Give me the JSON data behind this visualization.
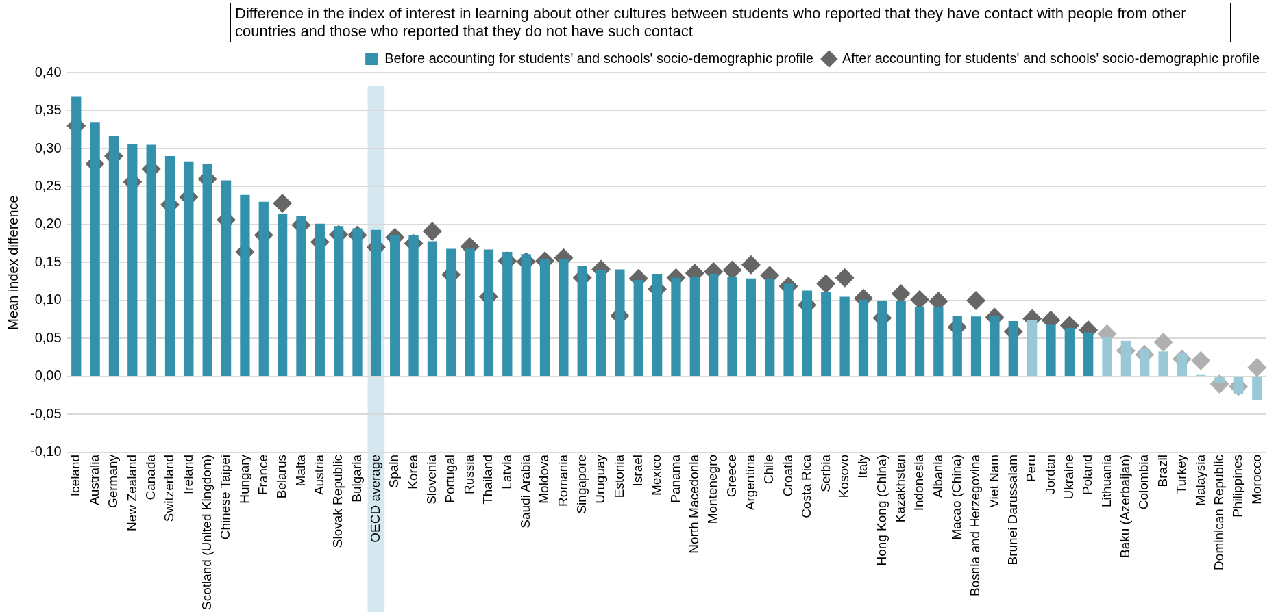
{
  "chart_data": {
    "type": "bar",
    "title": "Difference in the index of interest in learning about other cultures between students who reported that they have contact with people from other countries and those who reported that they do not have such contact",
    "ylabel": "Mean index difference",
    "categories": [
      "Iceland",
      "Australia",
      "Germany",
      "New Zealand",
      "Canada",
      "Switzerland",
      "Ireland",
      "Scotland (United Kingdom)",
      "Chinese Taipei",
      "Hungary",
      "France",
      "Belarus",
      "Malta",
      "Austria",
      "Slovak Republic",
      "Bulgaria",
      "OECD average",
      "Spain",
      "Korea",
      "Slovenia",
      "Portugal",
      "Russia",
      "Thailand",
      "Latvia",
      "Saudi Arabia",
      "Moldova",
      "Romania",
      "Singapore",
      "Uruguay",
      "Estonia",
      "Israel",
      "Mexico",
      "Panama",
      "North Macedonia",
      "Montenegro",
      "Greece",
      "Argentina",
      "Chile",
      "Croatia",
      "Costa Rica",
      "Serbia",
      "Kosovo",
      "Italy",
      "Hong Kong (China)",
      "Kazakhstan",
      "Indonesia",
      "Albania",
      "Macao (China)",
      "Bosnia and Herzegovina",
      "Viet Nam",
      "Brunei Darussalam",
      "Peru",
      "Jordan",
      "Ukraine",
      "Poland",
      "Lithuania",
      "Baku (Azerbaijan)",
      "Colombia",
      "Brazil",
      "Turkey",
      "Malaysia",
      "Dominican Republic",
      "Philippines",
      "Morocco"
    ],
    "series": [
      {
        "name": "Before accounting for students' and schools' socio-demographic profile",
        "color": "#3391ab",
        "colors": [
          "#3391ab",
          "#3391ab",
          "#3391ab",
          "#3391ab",
          "#3391ab",
          "#3391ab",
          "#3391ab",
          "#3391ab",
          "#3391ab",
          "#3391ab",
          "#3391ab",
          "#3391ab",
          "#3391ab",
          "#3391ab",
          "#3391ab",
          "#3391ab",
          "#3391ab",
          "#3391ab",
          "#3391ab",
          "#3391ab",
          "#3391ab",
          "#3391ab",
          "#3391ab",
          "#3391ab",
          "#3391ab",
          "#3391ab",
          "#3391ab",
          "#3391ab",
          "#3391ab",
          "#3391ab",
          "#3391ab",
          "#3391ab",
          "#3391ab",
          "#3391ab",
          "#3391ab",
          "#3391ab",
          "#3391ab",
          "#3391ab",
          "#3391ab",
          "#3391ab",
          "#3391ab",
          "#3391ab",
          "#3391ab",
          "#3391ab",
          "#3391ab",
          "#3391ab",
          "#3391ab",
          "#3391ab",
          "#3391ab",
          "#3391ab",
          "#3391ab",
          "#99c9d6",
          "#3391ab",
          "#3391ab",
          "#3391ab",
          "#99c9d6",
          "#99c9d6",
          "#99c9d6",
          "#99c9d6",
          "#99c9d6",
          "#99c9d6",
          "#99c9d6",
          "#99c9d6",
          "#99c9d6"
        ],
        "values": [
          0.369,
          0.335,
          0.317,
          0.306,
          0.305,
          0.29,
          0.283,
          0.28,
          0.258,
          0.239,
          0.23,
          0.214,
          0.211,
          0.201,
          0.198,
          0.195,
          0.193,
          0.186,
          0.186,
          0.178,
          0.168,
          0.168,
          0.167,
          0.164,
          0.161,
          0.155,
          0.155,
          0.145,
          0.14,
          0.141,
          0.127,
          0.135,
          0.13,
          0.131,
          0.135,
          0.131,
          0.129,
          0.129,
          0.122,
          0.113,
          0.111,
          0.105,
          0.101,
          0.099,
          0.1,
          0.092,
          0.092,
          0.08,
          0.079,
          0.08,
          0.073,
          0.074,
          0.068,
          0.064,
          0.058,
          0.052,
          0.047,
          0.036,
          0.033,
          0.031,
          0.002,
          -0.008,
          -0.023,
          -0.031
        ]
      },
      {
        "name": "After accounting for students' and schools' socio-demographic profile",
        "type": "scatter",
        "color": "#666666",
        "colors": [
          "#666666",
          "#666666",
          "#666666",
          "#666666",
          "#666666",
          "#666666",
          "#666666",
          "#666666",
          "#666666",
          "#666666",
          "#666666",
          "#666666",
          "#666666",
          "#666666",
          "#666666",
          "#666666",
          "#666666",
          "#666666",
          "#666666",
          "#666666",
          "#666666",
          "#666666",
          "#666666",
          "#666666",
          "#666666",
          "#666666",
          "#666666",
          "#666666",
          "#666666",
          "#666666",
          "#666666",
          "#666666",
          "#666666",
          "#666666",
          "#666666",
          "#666666",
          "#666666",
          "#666666",
          "#666666",
          "#666666",
          "#666666",
          "#666666",
          "#666666",
          "#666666",
          "#666666",
          "#666666",
          "#666666",
          "#666666",
          "#666666",
          "#666666",
          "#666666",
          "#666666",
          "#666666",
          "#666666",
          "#666666",
          "#b0b0b0",
          "#b0b0b0",
          "#b0b0b0",
          "#b0b0b0",
          "#b0b0b0",
          "#b0b0b0",
          "#b0b0b0",
          "#b0b0b0",
          "#b0b0b0"
        ],
        "x": [
          "Iceland",
          "Australia",
          "Germany",
          "New Zealand",
          "Canada",
          "Switzerland",
          "Ireland",
          "Scotland (United Kingdom)",
          "Chinese Taipei",
          "Hungary",
          "France",
          "Belarus",
          "Malta",
          "Austria",
          "Slovak Republic",
          "Bulgaria",
          "OECD average",
          "Spain",
          "Korea",
          "Slovenia",
          "Portugal",
          "Russia",
          "Thailand",
          "Latvia",
          "Saudi Arabia",
          "Moldova",
          "Romania",
          "Singapore",
          "Uruguay",
          "Estonia",
          "Israel",
          "Mexico",
          "Panama",
          "North Macedonia",
          "Montenegro",
          "Greece",
          "Argentina",
          "Chile",
          "Croatia",
          "Costa Rica",
          "Serbia",
          "Kosovo",
          "Italy",
          "Hong Kong (China)",
          "Kazakhstan",
          "Indonesia",
          "Albania",
          "Macao (China)",
          "Bosnia and Herzegovina",
          "Viet Nam",
          "Brunei Darussalam",
          "Peru",
          "Jordan",
          "Ukraine",
          "Poland",
          "Lithuania",
          "Baku (Azerbaijan)",
          "Colombia",
          "Brazil",
          "Turkey",
          "Malaysia",
          "Dominican Republic",
          "Philippines",
          "Morocco"
        ],
        "values": [
          0.33,
          0.28,
          0.29,
          0.256,
          0.273,
          0.226,
          0.236,
          0.26,
          0.206,
          0.164,
          0.186,
          0.228,
          0.199,
          0.177,
          0.187,
          0.186,
          0.17,
          0.183,
          0.175,
          0.191,
          0.134,
          0.171,
          0.105,
          0.152,
          0.151,
          0.152,
          0.156,
          0.13,
          0.141,
          0.08,
          0.129,
          0.115,
          0.13,
          0.136,
          0.138,
          0.14,
          0.147,
          0.133,
          0.119,
          0.094,
          0.122,
          0.13,
          0.103,
          0.077,
          0.109,
          0.101,
          0.099,
          0.065,
          0.1,
          0.078,
          0.059,
          0.076,
          0.074,
          0.067,
          0.061,
          0.056,
          0.034,
          0.029,
          0.045,
          0.023,
          0.021,
          -0.01,
          -0.013,
          0.012
        ]
      }
    ],
    "ylim": [
      -0.1,
      0.4
    ],
    "yticks": [
      {
        "value": -0.1,
        "label": "-0,10"
      },
      {
        "value": -0.05,
        "label": "-0,05"
      },
      {
        "value": 0,
        "label": "0,00"
      },
      {
        "value": 0.05,
        "label": "0,05"
      },
      {
        "value": 0.1,
        "label": "0,10"
      },
      {
        "value": 0.15,
        "label": "0,15"
      },
      {
        "value": 0.2,
        "label": "0,20"
      },
      {
        "value": 0.25,
        "label": "0,25"
      },
      {
        "value": 0.3,
        "label": "0,30"
      },
      {
        "value": 0.35,
        "label": "0,35"
      },
      {
        "value": 0.4,
        "label": "0,40"
      }
    ],
    "bands": [
      {
        "axis": "x",
        "from": "OECD average",
        "to": "OECD average",
        "color": "#d5e8ef"
      }
    ],
    "grid": "y",
    "legend": "top right",
    "marker": "diamond"
  }
}
